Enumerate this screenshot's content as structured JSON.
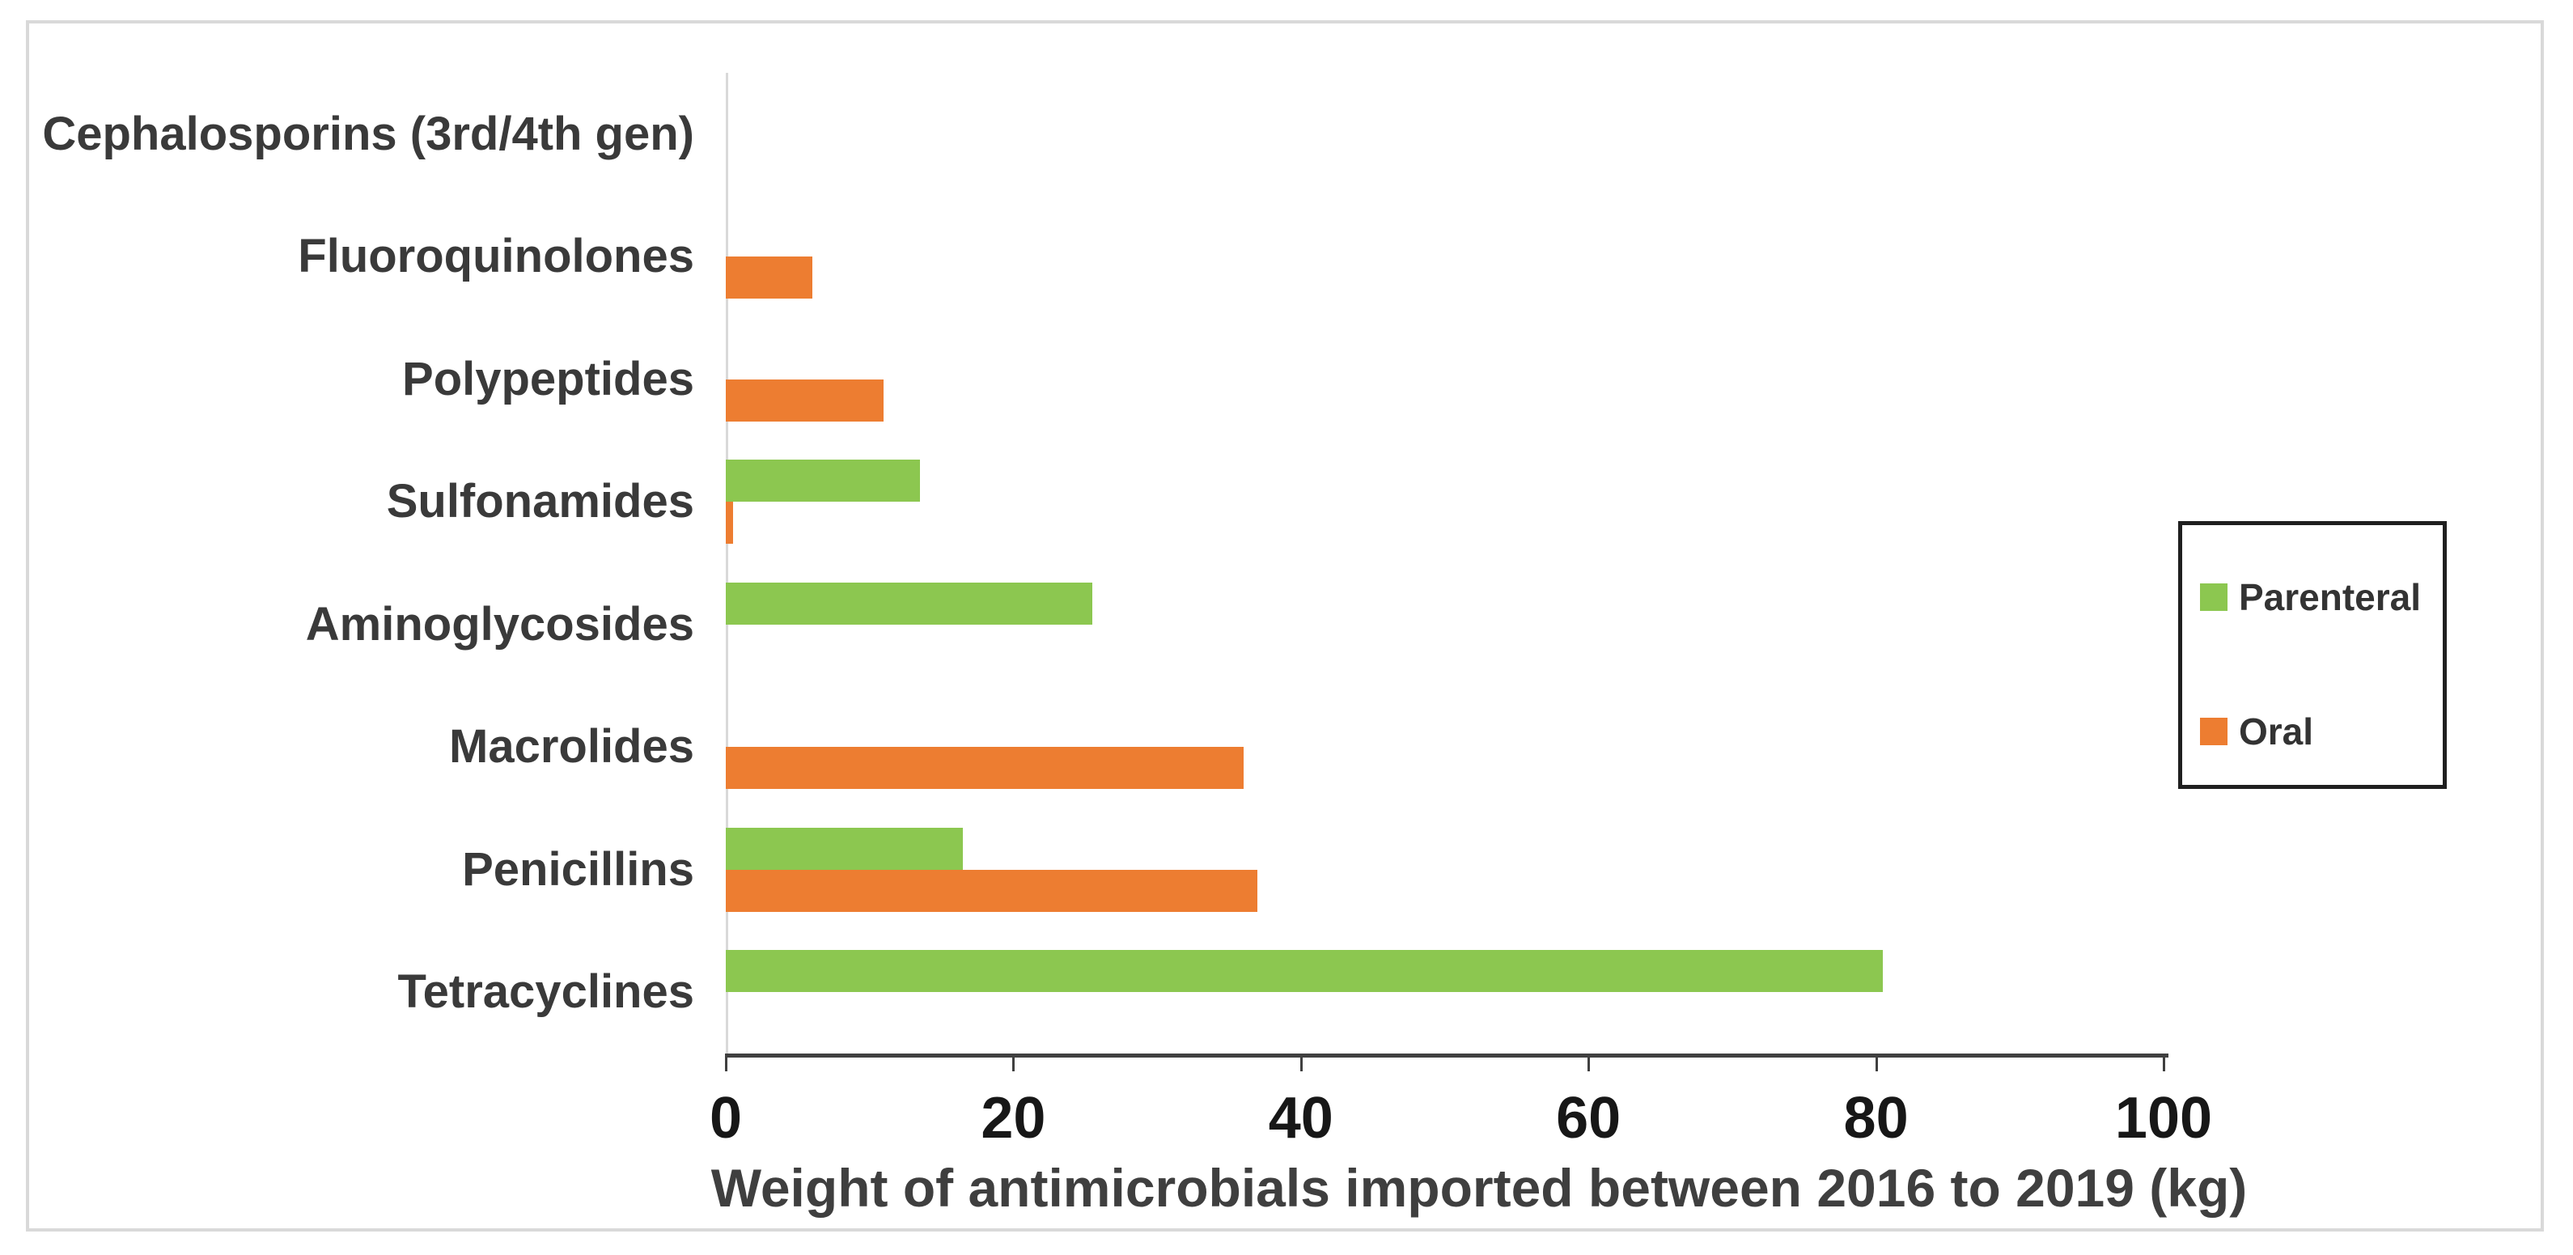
{
  "chart_data": {
    "type": "bar",
    "orientation": "horizontal",
    "title": "",
    "xlabel": "Weight of antimicrobials imported between 2016 to 2019 (kg)",
    "ylabel": "",
    "categories": [
      "Cephalosporins (3rd/4th gen)",
      "Fluoroquinolones",
      "Polypeptides",
      "Sulfonamides",
      "Aminoglycosides",
      "Macrolides",
      "Penicillins",
      "Tetracyclines"
    ],
    "series": [
      {
        "name": "Parenteral",
        "color": "#8cc750",
        "values": [
          0,
          0,
          0,
          13.5,
          25.5,
          0,
          16.5,
          80.5
        ]
      },
      {
        "name": "Oral",
        "color": "#ed7d31",
        "values": [
          0,
          6,
          11,
          0.5,
          0,
          36,
          37,
          0
        ]
      }
    ],
    "xticks": [
      0,
      20,
      40,
      60,
      80,
      100
    ],
    "xlim": [
      0,
      100
    ],
    "grid": false,
    "legend_position": "middle-right",
    "colors": {
      "axis_line": "#404040",
      "tick_label": "#171717",
      "category_label": "#3a3a3a",
      "axis_title": "#3f3f3f",
      "category_axis_line": "#d9d9d9",
      "frame_border": "#d9d9d9",
      "legend_border": "#1f1f1f"
    }
  }
}
